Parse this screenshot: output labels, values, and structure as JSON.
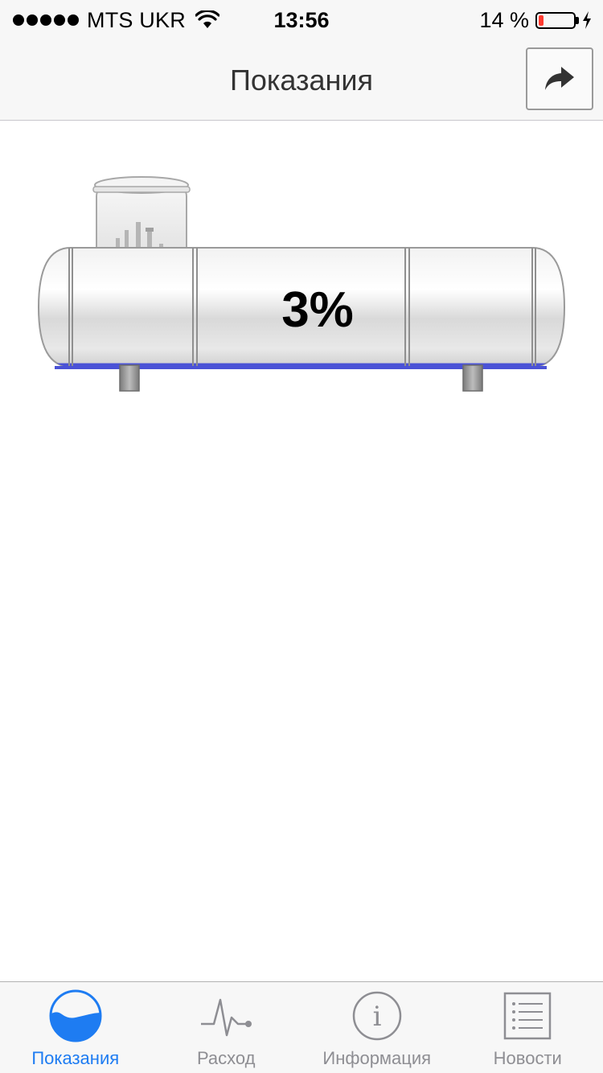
{
  "status_bar": {
    "carrier": "MTS UKR",
    "time": "13:56",
    "battery_text": "14 %",
    "battery_level": 0.14,
    "signal_bars": 5
  },
  "nav": {
    "title": "Показания",
    "share_icon": "share-arrow-icon"
  },
  "tank": {
    "fill_percent_label": "3%",
    "fill_level": 0.03,
    "liquid_color": "#4a52d6"
  },
  "tabs": [
    {
      "label": "Показания",
      "icon": "gauge-wave-icon",
      "active": true
    },
    {
      "label": "Расход",
      "icon": "pulse-icon",
      "active": false
    },
    {
      "label": "Информация",
      "icon": "info-icon",
      "active": false
    },
    {
      "label": "Новости",
      "icon": "news-list-icon",
      "active": false
    }
  ],
  "colors": {
    "active_tab": "#1e7cf2",
    "inactive_tab": "#8e8e93"
  }
}
